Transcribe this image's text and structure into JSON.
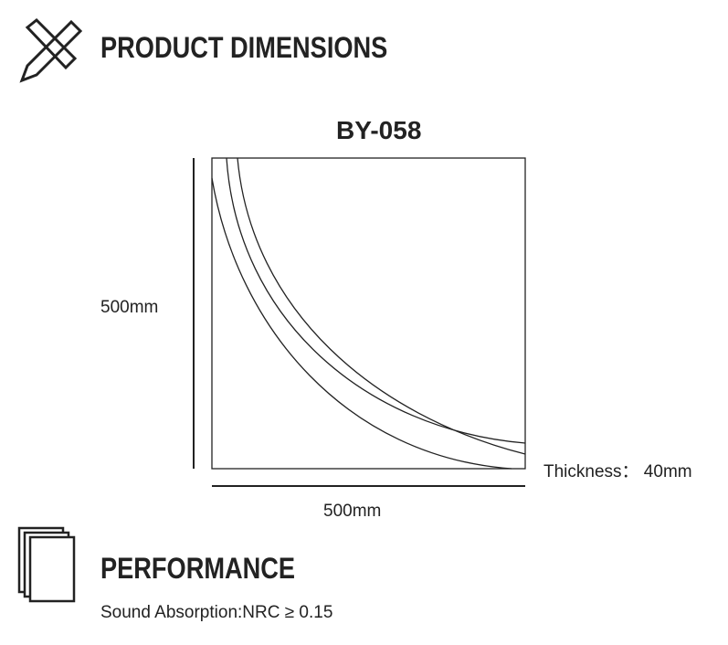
{
  "header": {
    "title": "PRODUCT DIMENSIONS"
  },
  "product": {
    "model": "BY-058",
    "height": "500mm",
    "width": "500mm",
    "thickness": "Thickness： 40mm"
  },
  "performance": {
    "title": "PERFORMANCE",
    "sound_absorption": "Sound Absorption:NRC ≥ 0.15"
  }
}
